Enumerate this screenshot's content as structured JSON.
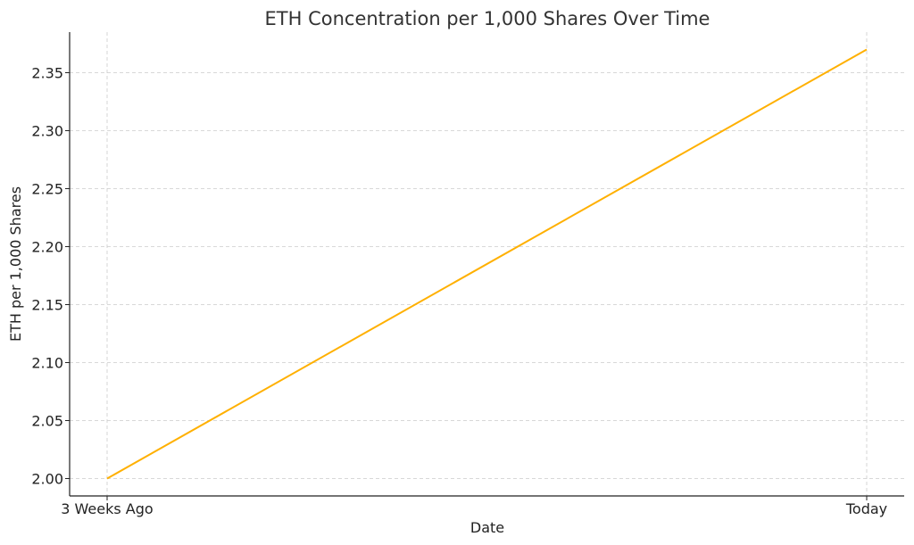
{
  "chart_data": {
    "type": "line",
    "title": "ETH Concentration per 1,000 Shares Over Time",
    "xlabel": "Date",
    "ylabel": "ETH per 1,000 Shares",
    "categories": [
      "3 Weeks Ago",
      "Today"
    ],
    "series": [
      {
        "values": [
          2.0,
          2.37
        ],
        "color": "#FFB000"
      }
    ],
    "ylim": [
      1.985,
      2.385
    ],
    "yticks": [
      2.0,
      2.05,
      2.1,
      2.15,
      2.2,
      2.25,
      2.3,
      2.35
    ],
    "ytick_labels": [
      "2.00",
      "2.05",
      "2.10",
      "2.15",
      "2.20",
      "2.25",
      "2.30",
      "2.35"
    ],
    "grid": true,
    "legend": "none"
  }
}
